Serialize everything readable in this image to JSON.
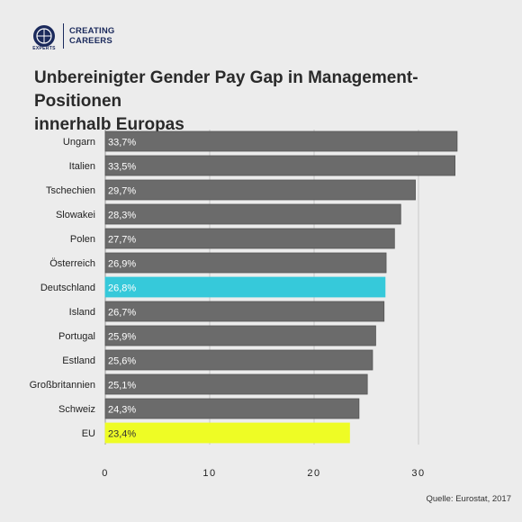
{
  "brand": {
    "badge_text": "EXPERTS",
    "name_line1": "CREATING",
    "name_line2": "CAREERS",
    "color": "#1b2a5c"
  },
  "title_line1": "Unbereinigter Gender Pay Gap in Management-Positionen",
  "title_line2": "innerhalb Europas",
  "source": "Quelle: Eurostat, 2017",
  "chart_data": {
    "type": "bar",
    "orientation": "horizontal",
    "categories": [
      "Ungarn",
      "Italien",
      "Tschechien",
      "Slowakei",
      "Polen",
      "Österreich",
      "Deutschland",
      "Island",
      "Portugal",
      "Estland",
      "Großbritannien",
      "Schweiz",
      "EU"
    ],
    "values": [
      33.7,
      33.5,
      29.7,
      28.3,
      27.7,
      26.9,
      26.8,
      26.7,
      25.9,
      25.6,
      25.1,
      24.3,
      23.4
    ],
    "value_labels": [
      "33,7%",
      "33,5%",
      "29,7%",
      "28,3%",
      "27,7%",
      "26,9%",
      "26,8%",
      "26,7%",
      "25,9%",
      "25,6%",
      "25,1%",
      "24,3%",
      "23,4%"
    ],
    "colors": [
      "#6b6b6b",
      "#6b6b6b",
      "#6b6b6b",
      "#6b6b6b",
      "#6b6b6b",
      "#6b6b6b",
      "#36c9da",
      "#6b6b6b",
      "#6b6b6b",
      "#6b6b6b",
      "#6b6b6b",
      "#6b6b6b",
      "#eefc25"
    ],
    "value_label_colors": [
      "#ffffff",
      "#ffffff",
      "#ffffff",
      "#ffffff",
      "#ffffff",
      "#ffffff",
      "#ffffff",
      "#ffffff",
      "#ffffff",
      "#ffffff",
      "#ffffff",
      "#ffffff",
      "#333333"
    ],
    "xticks": [
      0,
      10,
      20,
      30
    ],
    "xtick_labels": [
      "0",
      "10",
      "20",
      "30"
    ],
    "xlim": [
      0,
      35
    ],
    "grid": true
  }
}
